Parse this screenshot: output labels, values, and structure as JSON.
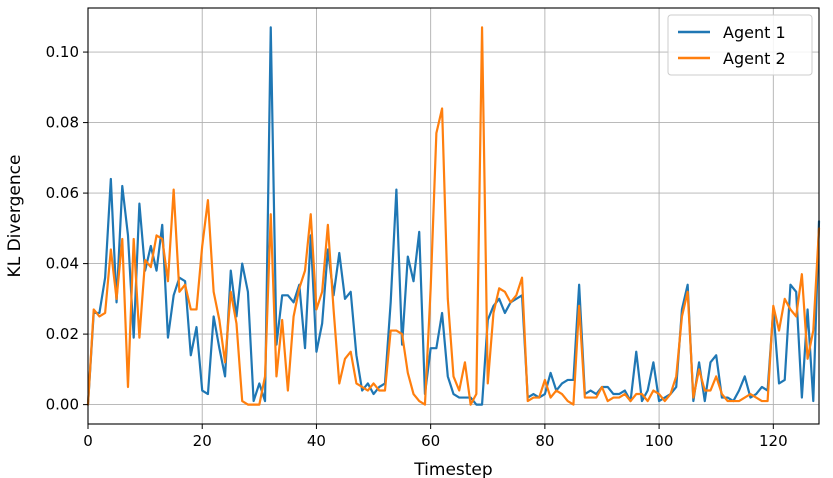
{
  "chart_data": {
    "type": "line",
    "title": "",
    "xlabel": "Timestep",
    "ylabel": "KL Divergence",
    "xlim": [
      0,
      128
    ],
    "ylim": [
      -0.0055,
      0.1125
    ],
    "xticks": [
      0,
      20,
      40,
      60,
      80,
      100,
      120
    ],
    "yticks": [
      0.0,
      0.02,
      0.04,
      0.06,
      0.08,
      0.1
    ],
    "ytick_labels": [
      "0.00",
      "0.02",
      "0.04",
      "0.06",
      "0.08",
      "0.10"
    ],
    "grid": true,
    "legend_position": "top-right",
    "series": [
      {
        "name": "Agent 1",
        "color": "#1f77b4",
        "values": [
          0.0,
          0.026,
          0.026,
          0.036,
          0.064,
          0.029,
          0.062,
          0.048,
          0.019,
          0.057,
          0.038,
          0.045,
          0.038,
          0.051,
          0.019,
          0.031,
          0.036,
          0.035,
          0.014,
          0.022,
          0.004,
          0.003,
          0.025,
          0.016,
          0.008,
          0.038,
          0.025,
          0.04,
          0.032,
          0.001,
          0.006,
          0.001,
          0.107,
          0.017,
          0.031,
          0.031,
          0.029,
          0.034,
          0.016,
          0.048,
          0.015,
          0.023,
          0.044,
          0.031,
          0.043,
          0.03,
          0.032,
          0.014,
          0.004,
          0.006,
          0.003,
          0.005,
          0.006,
          0.029,
          0.061,
          0.017,
          0.042,
          0.035,
          0.049,
          0.003,
          0.016,
          0.016,
          0.026,
          0.008,
          0.003,
          0.002,
          0.002,
          0.002,
          0.0,
          0.0,
          0.024,
          0.028,
          0.03,
          0.026,
          0.029,
          0.03,
          0.031,
          0.002,
          0.003,
          0.002,
          0.003,
          0.009,
          0.004,
          0.006,
          0.007,
          0.007,
          0.034,
          0.003,
          0.004,
          0.003,
          0.005,
          0.005,
          0.003,
          0.003,
          0.004,
          0.001,
          0.015,
          0.001,
          0.004,
          0.012,
          0.001,
          0.002,
          0.003,
          0.005,
          0.027,
          0.034,
          0.001,
          0.012,
          0.001,
          0.012,
          0.014,
          0.002,
          0.002,
          0.001,
          0.004,
          0.008,
          0.002,
          0.003,
          0.005,
          0.004,
          0.027,
          0.006,
          0.007,
          0.034,
          0.032,
          0.002,
          0.027,
          0.001,
          0.052
        ]
      },
      {
        "name": "Agent 2",
        "color": "#ff7f0e",
        "values": [
          0.0,
          0.027,
          0.025,
          0.026,
          0.044,
          0.03,
          0.047,
          0.005,
          0.047,
          0.019,
          0.041,
          0.039,
          0.048,
          0.047,
          0.035,
          0.061,
          0.032,
          0.034,
          0.027,
          0.027,
          0.045,
          0.058,
          0.032,
          0.024,
          0.012,
          0.032,
          0.023,
          0.001,
          0.0,
          0.0,
          0.0,
          0.008,
          0.054,
          0.008,
          0.024,
          0.004,
          0.025,
          0.033,
          0.038,
          0.054,
          0.027,
          0.032,
          0.051,
          0.027,
          0.006,
          0.013,
          0.015,
          0.006,
          0.005,
          0.004,
          0.006,
          0.004,
          0.004,
          0.021,
          0.021,
          0.02,
          0.009,
          0.003,
          0.001,
          0.0,
          0.033,
          0.077,
          0.084,
          0.03,
          0.008,
          0.004,
          0.012,
          0.0,
          0.003,
          0.107,
          0.006,
          0.026,
          0.033,
          0.032,
          0.029,
          0.031,
          0.036,
          0.001,
          0.002,
          0.002,
          0.007,
          0.002,
          0.004,
          0.003,
          0.001,
          0.0,
          0.028,
          0.002,
          0.002,
          0.002,
          0.005,
          0.001,
          0.002,
          0.002,
          0.003,
          0.001,
          0.003,
          0.003,
          0.001,
          0.004,
          0.003,
          0.001,
          0.003,
          0.008,
          0.025,
          0.032,
          0.002,
          0.01,
          0.004,
          0.004,
          0.008,
          0.003,
          0.001,
          0.001,
          0.001,
          0.002,
          0.003,
          0.002,
          0.001,
          0.001,
          0.028,
          0.021,
          0.03,
          0.027,
          0.025,
          0.037,
          0.013,
          0.021,
          0.05
        ]
      }
    ]
  }
}
